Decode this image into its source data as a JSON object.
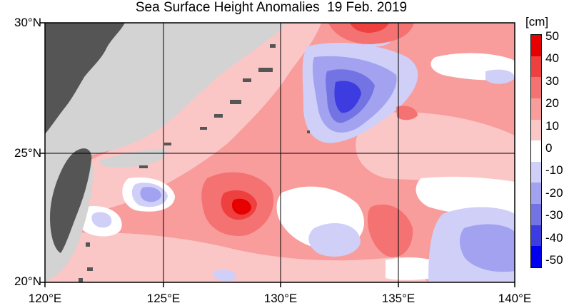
{
  "title": "Sea Surface Height Anomalies  19 Feb. 2019",
  "unit": "[cm]",
  "latitude_labels": [
    "30°N",
    "25°N",
    "20°N"
  ],
  "longitude_labels": [
    "120°E",
    "125°E",
    "130°E",
    "135°E",
    "140°E"
  ],
  "colorbar": {
    "ticks": [
      "50",
      "40",
      "30",
      "20",
      "10",
      "0",
      "-10",
      "-20",
      "-30",
      "-40",
      "-50"
    ],
    "colors_top_to_bottom": [
      "#e60000",
      "#ef4040",
      "#f47272",
      "#f89c9c",
      "#fbc6c6",
      "#ffffff",
      "#cfcff8",
      "#a2a2f0",
      "#7373e4",
      "#3c3ce0",
      "#0000ee"
    ]
  },
  "map": {
    "land_color": "#555555",
    "missing_data_color": "#d3d3d3",
    "ocean_base_color": "#f89c9c"
  }
}
